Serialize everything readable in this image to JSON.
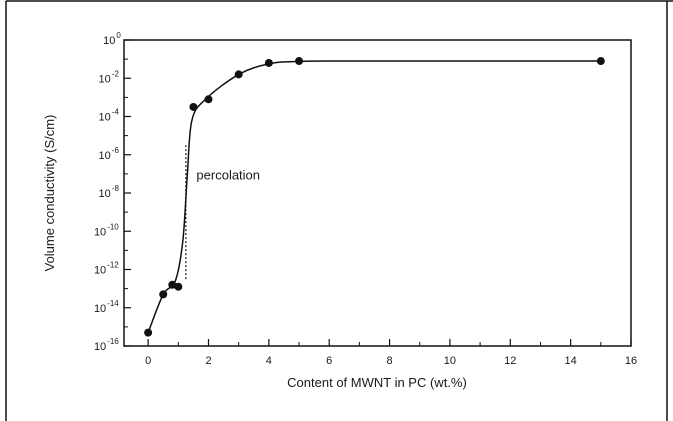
{
  "chart_data": {
    "type": "scatter",
    "title": "",
    "xlabel": "Content of MWNT in PC (wt.%)",
    "ylabel": "Volume conductivity (S/cm)",
    "x_ticks": [
      "0",
      "2",
      "4",
      "6",
      "8",
      "10",
      "12",
      "14",
      "16"
    ],
    "y_ticks": [
      {
        "base": "10",
        "exp": "0"
      },
      {
        "base": "10",
        "exp": "-2"
      },
      {
        "base": "10",
        "exp": "-4"
      },
      {
        "base": "10",
        "exp": "-6"
      },
      {
        "base": "10",
        "exp": "-8"
      },
      {
        "base": "10",
        "exp": "-10"
      },
      {
        "base": "10",
        "exp": "-12"
      },
      {
        "base": "10",
        "exp": "-14"
      },
      {
        "base": "10",
        "exp": "-16"
      }
    ],
    "xlim": [
      -0.8,
      16
    ],
    "ylim_log10": [
      -16,
      0
    ],
    "y_scale": "log",
    "grid": false,
    "legend": "none",
    "series": [
      {
        "x": [
          0,
          0.5,
          0.8,
          1.0,
          1.5,
          2.0,
          3.0,
          4.0,
          5.0,
          15.0
        ],
        "y_log10": [
          -15.3,
          -13.3,
          -12.8,
          -12.9,
          -3.5,
          -3.1,
          -1.8,
          -1.2,
          -1.1,
          -1.1
        ]
      }
    ],
    "annotations": [
      {
        "text": "percolation",
        "x": 1.6,
        "y_log10": -7.3
      }
    ],
    "percolation_marker": {
      "x": 1.25,
      "y_log10_from": -12.5,
      "y_log10_to": -5.5
    },
    "colors": {
      "marker": "#111111",
      "line": "#111111",
      "axis": "#111111"
    }
  }
}
